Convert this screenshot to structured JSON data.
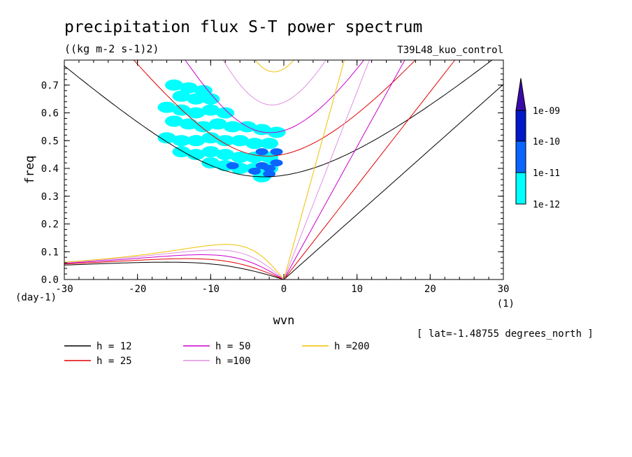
{
  "chart_data": {
    "type": "line",
    "title": "precipitation flux S-T power spectrum",
    "units": "((kg m-2 s-1)2)",
    "run_label": "T39L48_kuo_control",
    "xlabel": "wvn",
    "ylabel": "freq",
    "x_unit": "(1)",
    "y_unit": "(day-1)",
    "xlim": [
      -30,
      30
    ],
    "ylim": [
      0,
      0.79
    ],
    "x_ticks": [
      "-30",
      "-20",
      "-10",
      "0",
      "10",
      "20",
      "30"
    ],
    "x_tick_values": [
      -30,
      -20,
      -10,
      0,
      10,
      20,
      30
    ],
    "y_ticks": [
      "0.0",
      "0.1",
      "0.2",
      "0.3",
      "0.4",
      "0.5",
      "0.6",
      "0.7"
    ],
    "y_tick_values": [
      0,
      0.1,
      0.2,
      0.3,
      0.4,
      0.5,
      0.6,
      0.7
    ],
    "location_note": "[ lat=-1.48755 degrees_north ]",
    "grid": false,
    "legend_placement": "below plot",
    "series": [
      {
        "name": "h = 12",
        "h": 12,
        "color": "#000000"
      },
      {
        "name": "h = 25",
        "h": 25,
        "color": "#e00000"
      },
      {
        "name": "h = 50",
        "h": 50,
        "color": "#cc00cc"
      },
      {
        "name": "h =100",
        "h": 100,
        "color": "#e090e0"
      },
      {
        "name": "h =200",
        "h": 200,
        "color": "#f0c000"
      }
    ],
    "contour_field": {
      "colorbar_labels": [
        "1e-09",
        "1e-10",
        "1e-11",
        "1e-12"
      ],
      "levels": [
        1e-12,
        1e-11,
        1e-10,
        1e-09
      ],
      "colors": [
        "#00ffff",
        "#0a64ff",
        "#0018c8",
        "#3a0aa8"
      ],
      "regions": [
        {
          "level": "1e-12",
          "color": "#00ffff",
          "cells": [
            [
              -15,
              0.7
            ],
            [
              -13,
              0.69
            ],
            [
              -11,
              0.68
            ],
            [
              -14,
              0.66
            ],
            [
              -12,
              0.65
            ],
            [
              -10,
              0.65
            ],
            [
              -16,
              0.62
            ],
            [
              -14,
              0.61
            ],
            [
              -12,
              0.6
            ],
            [
              -10,
              0.61
            ],
            [
              -8,
              0.6
            ],
            [
              -15,
              0.57
            ],
            [
              -13,
              0.56
            ],
            [
              -11,
              0.55
            ],
            [
              -9,
              0.56
            ],
            [
              -7,
              0.55
            ],
            [
              -5,
              0.55
            ],
            [
              -3,
              0.54
            ],
            [
              -1,
              0.53
            ],
            [
              -16,
              0.51
            ],
            [
              -14,
              0.5
            ],
            [
              -12,
              0.5
            ],
            [
              -10,
              0.51
            ],
            [
              -8,
              0.5
            ],
            [
              -6,
              0.5
            ],
            [
              -4,
              0.49
            ],
            [
              -2,
              0.49
            ],
            [
              -14,
              0.46
            ],
            [
              -12,
              0.45
            ],
            [
              -10,
              0.46
            ],
            [
              -8,
              0.45
            ],
            [
              -6,
              0.44
            ],
            [
              -4,
              0.44
            ],
            [
              -2,
              0.44
            ],
            [
              -10,
              0.42
            ],
            [
              -8,
              0.41
            ],
            [
              -6,
              0.4
            ],
            [
              -4,
              0.4
            ],
            [
              -2,
              0.4
            ],
            [
              -3,
              0.37
            ]
          ]
        },
        {
          "level": "1e-11",
          "color": "#0a64ff",
          "cells": [
            [
              -3,
              0.41
            ],
            [
              -2,
              0.4
            ],
            [
              -1,
              0.42
            ],
            [
              -4,
              0.39
            ],
            [
              -2,
              0.38
            ],
            [
              -3,
              0.46
            ],
            [
              -1,
              0.46
            ],
            [
              -7,
              0.41
            ]
          ]
        }
      ]
    }
  }
}
